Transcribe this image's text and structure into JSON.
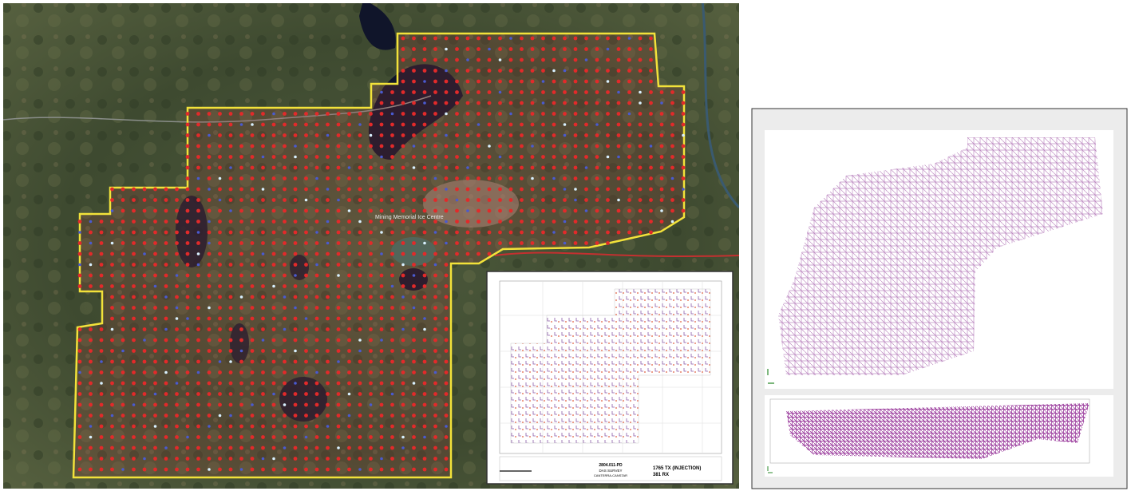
{
  "map": {
    "labels": [
      "Mining Memorial Ice Centre"
    ]
  },
  "inset": {
    "project": "2804.011-PD",
    "survey": "DAS SURVEY",
    "client": "CANTERRA-CANSTAR",
    "tx": "1765 TX (INJECTION)",
    "rx": "381 RX"
  }
}
